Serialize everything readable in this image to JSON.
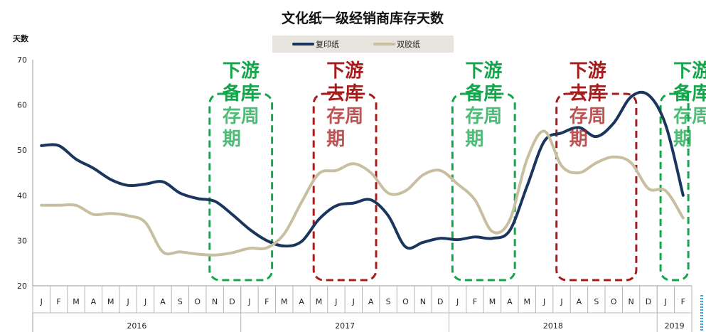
{
  "chart_data": {
    "type": "line",
    "title": "文化纸一级经销商库存天数",
    "ylabel": "天数",
    "ylim": [
      20,
      70
    ],
    "yticks": [
      20,
      30,
      40,
      50,
      60,
      70
    ],
    "x": [
      "J",
      "F",
      "M",
      "A",
      "M",
      "J",
      "J",
      "A",
      "S",
      "O",
      "N",
      "D",
      "J",
      "F",
      "M",
      "A",
      "M",
      "J",
      "J",
      "A",
      "S",
      "O",
      "N",
      "D",
      "J",
      "F",
      "M",
      "A",
      "M",
      "J",
      "J",
      "A",
      "S",
      "O",
      "N",
      "D",
      "J",
      "F"
    ],
    "years": [
      {
        "label": "2016",
        "start": 0,
        "end": 11
      },
      {
        "label": "2017",
        "start": 12,
        "end": 23
      },
      {
        "label": "2018",
        "start": 24,
        "end": 35
      },
      {
        "label": "2019",
        "start": 36,
        "end": 37
      }
    ],
    "legend_position": "top-center",
    "grid": false,
    "series": [
      {
        "name": "复印纸",
        "color": "#1b365d",
        "values": [
          51,
          51,
          48,
          46,
          43.5,
          42.2,
          42.5,
          43,
          40.5,
          39.3,
          38.7,
          35.8,
          32.5,
          30,
          28.8,
          29.8,
          34.7,
          37.7,
          38.3,
          39,
          35.5,
          28.6,
          29.6,
          30.5,
          30.2,
          30.8,
          30.5,
          32.2,
          42,
          52,
          53.8,
          55,
          53,
          56,
          61.8,
          62.2,
          55.5,
          40
        ]
      },
      {
        "name": "双胶纸",
        "color": "#c8bfa0",
        "values": [
          37.8,
          37.8,
          37.8,
          35.8,
          36,
          35.5,
          34,
          27.5,
          27.5,
          27,
          26.8,
          27.3,
          28.3,
          28.4,
          31.5,
          38.5,
          44.8,
          45.5,
          47,
          45,
          40.5,
          41,
          44.5,
          45.5,
          42.5,
          39,
          32,
          34.5,
          48,
          54.2,
          46.5,
          45,
          47.2,
          48.5,
          47.2,
          41.5,
          41,
          35
        ]
      }
    ],
    "annotations": [
      {
        "lines": [
          "下游",
          "备库",
          "存周",
          "期"
        ],
        "color": "#13a64a",
        "from": 10,
        "to": 13
      },
      {
        "lines": [
          "下游",
          "去库",
          "存周",
          "期"
        ],
        "color": "#a61c1c",
        "from": 16,
        "to": 19
      },
      {
        "lines": [
          "下游",
          "备库",
          "存周",
          "期"
        ],
        "color": "#13a64a",
        "from": 24,
        "to": 27
      },
      {
        "lines": [
          "下游",
          "去库",
          "存周",
          "期"
        ],
        "color": "#a61c1c",
        "from": 30,
        "to": 34
      },
      {
        "lines": [
          "下游",
          "备库",
          "存周",
          "期"
        ],
        "color": "#13a64a",
        "from": 36,
        "to": 37
      }
    ]
  }
}
